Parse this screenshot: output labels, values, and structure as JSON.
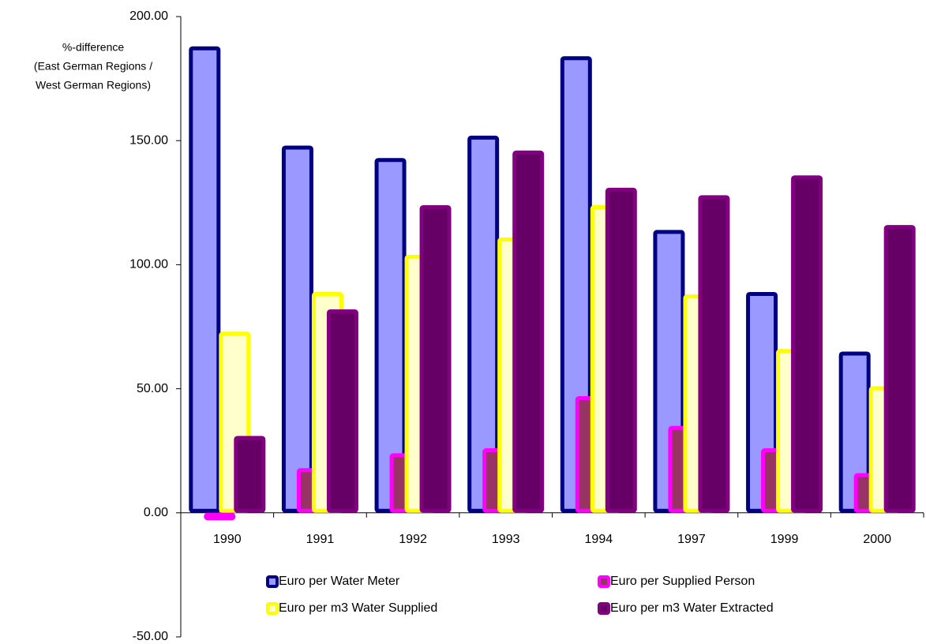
{
  "chart_data": {
    "type": "bar",
    "ylabel": [
      "%-difference",
      "(East German Regions /",
      "West German Regions)"
    ],
    "categories": [
      "1990",
      "1991",
      "1992",
      "1993",
      "1994",
      "1997",
      "1999",
      "2000"
    ],
    "series": [
      {
        "name": "Euro per Water Meter",
        "color": "#9999ff",
        "stroke": "#000080",
        "values": [
          188,
          148,
          143,
          152,
          184,
          114,
          89,
          65
        ]
      },
      {
        "name": "Euro per Supplied Person",
        "color": "#993366",
        "stroke": "#ff00ff",
        "values": [
          -3,
          18,
          24,
          26,
          47,
          35,
          26,
          16
        ]
      },
      {
        "name": "Euro per m3 Water Supplied",
        "color": "#ffffcc",
        "stroke": "#ffff00",
        "values": [
          73,
          89,
          104,
          111,
          124,
          88,
          66,
          51
        ]
      },
      {
        "name": "Euro per m3 Water Extracted",
        "color": "#660066",
        "stroke": "#800080",
        "values": [
          31,
          82,
          124,
          146,
          131,
          128,
          136,
          116
        ]
      }
    ],
    "ylim": [
      -50,
      200
    ],
    "yticks": [
      {
        "value": -50,
        "label": "-50.00"
      },
      {
        "value": 0,
        "label": "0.00"
      },
      {
        "value": 50,
        "label": "50.00"
      },
      {
        "value": 100,
        "label": "100.00"
      },
      {
        "value": 150,
        "label": "150.00"
      },
      {
        "value": 200,
        "label": "200.00"
      }
    ],
    "grid": false,
    "legend": "bottom"
  }
}
